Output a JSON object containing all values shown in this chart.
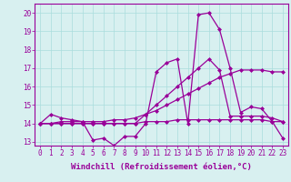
{
  "xlabel": "Windchill (Refroidissement éolien,°C)",
  "x": [
    0,
    1,
    2,
    3,
    4,
    5,
    6,
    7,
    8,
    9,
    10,
    11,
    12,
    13,
    14,
    15,
    16,
    17,
    18,
    19,
    20,
    21,
    22,
    23
  ],
  "line1": [
    14.0,
    14.5,
    14.3,
    14.2,
    14.1,
    13.1,
    13.2,
    12.8,
    13.3,
    13.3,
    14.0,
    16.8,
    17.3,
    17.5,
    14.0,
    19.9,
    20.0,
    19.1,
    17.0,
    14.6,
    14.9,
    14.8,
    14.1,
    13.2
  ],
  "line2": [
    14.0,
    14.0,
    14.0,
    14.0,
    14.0,
    14.0,
    14.0,
    14.0,
    14.0,
    14.0,
    14.5,
    15.0,
    15.5,
    16.0,
    16.5,
    17.0,
    17.5,
    16.9,
    14.4,
    14.4,
    14.4,
    14.4,
    14.3,
    14.1
  ],
  "line3": [
    14.0,
    14.0,
    14.1,
    14.1,
    14.1,
    14.1,
    14.1,
    14.2,
    14.2,
    14.3,
    14.5,
    14.7,
    15.0,
    15.3,
    15.6,
    15.9,
    16.2,
    16.5,
    16.7,
    16.9,
    16.9,
    16.9,
    16.8,
    16.8
  ],
  "line4": [
    14.0,
    14.0,
    14.0,
    14.0,
    14.0,
    14.0,
    14.0,
    14.0,
    14.0,
    14.0,
    14.1,
    14.1,
    14.1,
    14.2,
    14.2,
    14.2,
    14.2,
    14.2,
    14.2,
    14.2,
    14.2,
    14.2,
    14.1,
    14.1
  ],
  "line_color": "#990099",
  "bg_color": "#d8f0f0",
  "grid_color": "#aadddd",
  "ylim": [
    12.8,
    20.5
  ],
  "yticks": [
    13,
    14,
    15,
    16,
    17,
    18,
    19,
    20
  ],
  "xticks": [
    0,
    1,
    2,
    3,
    4,
    5,
    6,
    7,
    8,
    9,
    10,
    11,
    12,
    13,
    14,
    15,
    16,
    17,
    18,
    19,
    20,
    21,
    22,
    23
  ],
  "marker": "D",
  "markersize": 2.0,
  "linewidth": 0.9,
  "xlabel_fontsize": 6.5,
  "tick_fontsize": 5.5
}
